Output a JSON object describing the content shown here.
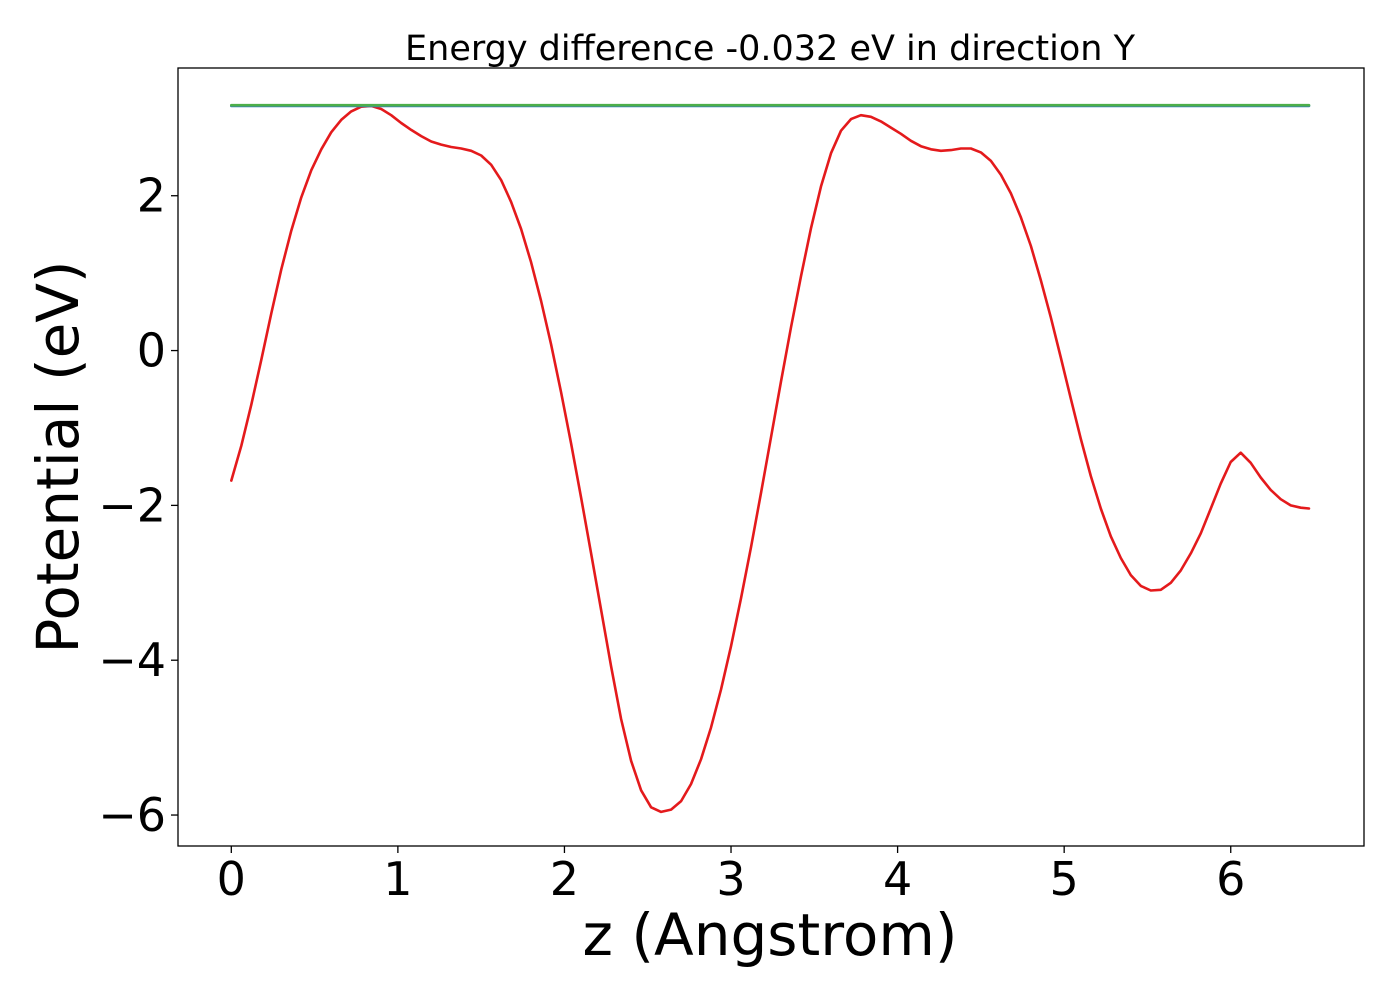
{
  "chart_data": {
    "type": "line",
    "title": "Energy difference -0.032 eV in direction Y",
    "xlabel": "z (Angstrom)",
    "ylabel": "Potential (eV)",
    "xlim": [
      -0.32,
      6.8
    ],
    "ylim": [
      -6.4,
      3.65
    ],
    "xticks": [
      0,
      1,
      2,
      3,
      4,
      5,
      6
    ],
    "xtick_labels": [
      "0",
      "1",
      "2",
      "3",
      "4",
      "5",
      "6"
    ],
    "yticks": [
      -6,
      -4,
      -2,
      0,
      2
    ],
    "ytick_labels": [
      "−6",
      "−4",
      "−2",
      "0",
      "2"
    ],
    "grid": false,
    "series": [
      {
        "color": "#e41a1c",
        "x": [
          0.0,
          0.06,
          0.12,
          0.18,
          0.24,
          0.3,
          0.36,
          0.42,
          0.48,
          0.54,
          0.6,
          0.66,
          0.72,
          0.78,
          0.84,
          0.9,
          0.96,
          1.02,
          1.08,
          1.14,
          1.2,
          1.26,
          1.32,
          1.38,
          1.44,
          1.5,
          1.56,
          1.62,
          1.68,
          1.74,
          1.8,
          1.86,
          1.92,
          1.98,
          2.04,
          2.1,
          2.16,
          2.22,
          2.28,
          2.34,
          2.4,
          2.46,
          2.52,
          2.58,
          2.64,
          2.7,
          2.76,
          2.82,
          2.88,
          2.94,
          3.0,
          3.06,
          3.12,
          3.18,
          3.24,
          3.3,
          3.36,
          3.42,
          3.48,
          3.54,
          3.6,
          3.66,
          3.72,
          3.78,
          3.84,
          3.9,
          3.96,
          4.02,
          4.08,
          4.14,
          4.2,
          4.26,
          4.32,
          4.38,
          4.44,
          4.5,
          4.56,
          4.62,
          4.68,
          4.74,
          4.8,
          4.86,
          4.92,
          4.98,
          5.04,
          5.1,
          5.16,
          5.22,
          5.28,
          5.34,
          5.4,
          5.46,
          5.52,
          5.58,
          5.64,
          5.7,
          5.76,
          5.82,
          5.88,
          5.94,
          6.0,
          6.06,
          6.12,
          6.18,
          6.24,
          6.3,
          6.36,
          6.42,
          6.47
        ],
        "values": [
          -1.68,
          -1.23,
          -0.7,
          -0.12,
          0.48,
          1.05,
          1.55,
          1.98,
          2.33,
          2.6,
          2.82,
          2.98,
          3.09,
          3.15,
          3.16,
          3.12,
          3.04,
          2.94,
          2.85,
          2.77,
          2.7,
          2.66,
          2.63,
          2.61,
          2.58,
          2.52,
          2.4,
          2.2,
          1.92,
          1.57,
          1.14,
          0.64,
          0.08,
          -0.54,
          -1.2,
          -1.9,
          -2.62,
          -3.35,
          -4.08,
          -4.76,
          -5.3,
          -5.68,
          -5.9,
          -5.96,
          -5.93,
          -5.82,
          -5.6,
          -5.28,
          -4.87,
          -4.38,
          -3.82,
          -3.2,
          -2.54,
          -1.84,
          -1.12,
          -0.4,
          0.3,
          0.96,
          1.58,
          2.12,
          2.55,
          2.84,
          2.99,
          3.04,
          3.02,
          2.96,
          2.88,
          2.8,
          2.71,
          2.64,
          2.6,
          2.58,
          2.59,
          2.61,
          2.61,
          2.56,
          2.45,
          2.27,
          2.03,
          1.72,
          1.35,
          0.91,
          0.43,
          -0.09,
          -0.62,
          -1.14,
          -1.62,
          -2.04,
          -2.4,
          -2.68,
          -2.9,
          -3.04,
          -3.1,
          -3.09,
          -3.0,
          -2.84,
          -2.62,
          -2.36,
          -2.04,
          -1.72,
          -1.44,
          -1.32,
          -1.45,
          -1.64,
          -1.8,
          -1.92,
          -2.0,
          -2.03,
          -2.04
        ]
      },
      {
        "color": "#377eb8",
        "x": [
          0.0,
          6.47
        ],
        "values": [
          3.16,
          3.16
        ]
      },
      {
        "color": "#4daf4a",
        "x": [
          0.0,
          6.47
        ],
        "values": [
          3.17,
          3.17
        ]
      }
    ]
  }
}
